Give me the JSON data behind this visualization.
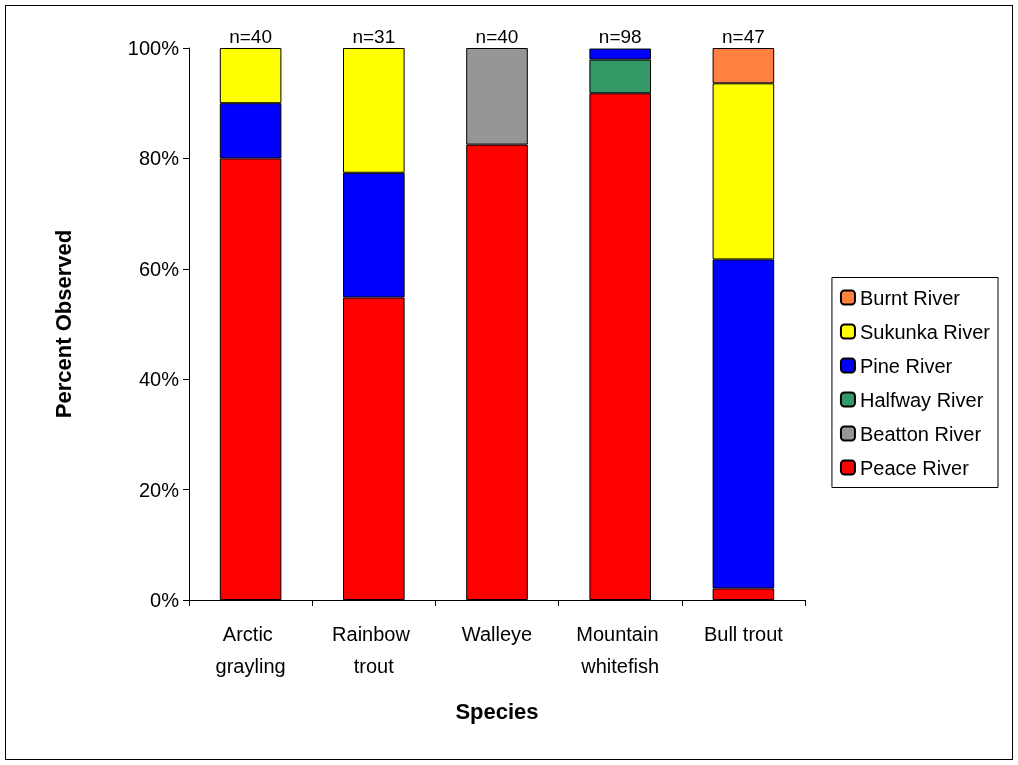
{
  "chart_data": {
    "type": "bar",
    "stacked": true,
    "xlabel": "Species",
    "ylabel": "Percent Observed",
    "categories": [
      "Arctic grayling",
      "Rainbow trout",
      "Walleye",
      "Mountain whitefish",
      "Bull trout"
    ],
    "series": [
      {
        "name": "Peace River",
        "color": "#ff0000",
        "values": [
          80,
          54.8,
          82.5,
          91.8,
          2.1
        ]
      },
      {
        "name": "Beatton River",
        "color": "#969696",
        "values": [
          null,
          null,
          17.5,
          null,
          null
        ]
      },
      {
        "name": "Halfway River",
        "color": "#339966",
        "values": [
          null,
          null,
          null,
          6.1,
          null
        ]
      },
      {
        "name": "Pine River",
        "color": "#0000ff",
        "values": [
          10,
          22.6,
          null,
          2.0,
          59.6
        ]
      },
      {
        "name": "Sukunka River",
        "color": "#ffff00",
        "values": [
          10,
          22.6,
          null,
          null,
          31.9
        ]
      },
      {
        "name": "Burnt River",
        "color": "#ff8040",
        "values": [
          null,
          null,
          null,
          null,
          6.4
        ]
      }
    ],
    "ylim": [
      0,
      100
    ],
    "yticks": [
      {
        "value": 0,
        "label": "0%"
      },
      {
        "value": 20,
        "label": "20%"
      },
      {
        "value": 40,
        "label": "40%"
      },
      {
        "value": 60,
        "label": "60%"
      },
      {
        "value": 80,
        "label": "80%"
      },
      {
        "value": 100,
        "label": "100%"
      }
    ],
    "annotations": [
      {
        "text": "n=40",
        "x": "Arctic grayling",
        "y": 100
      },
      {
        "text": "n=31",
        "x": "Rainbow trout",
        "y": 100
      },
      {
        "text": "n=40",
        "x": "Walleye",
        "y": 100
      },
      {
        "text": "n=98",
        "x": "Mountain whitefish",
        "y": 100
      },
      {
        "text": "n=47",
        "x": "Bull trout",
        "y": 100
      }
    ],
    "legend": "right",
    "grid": false
  }
}
